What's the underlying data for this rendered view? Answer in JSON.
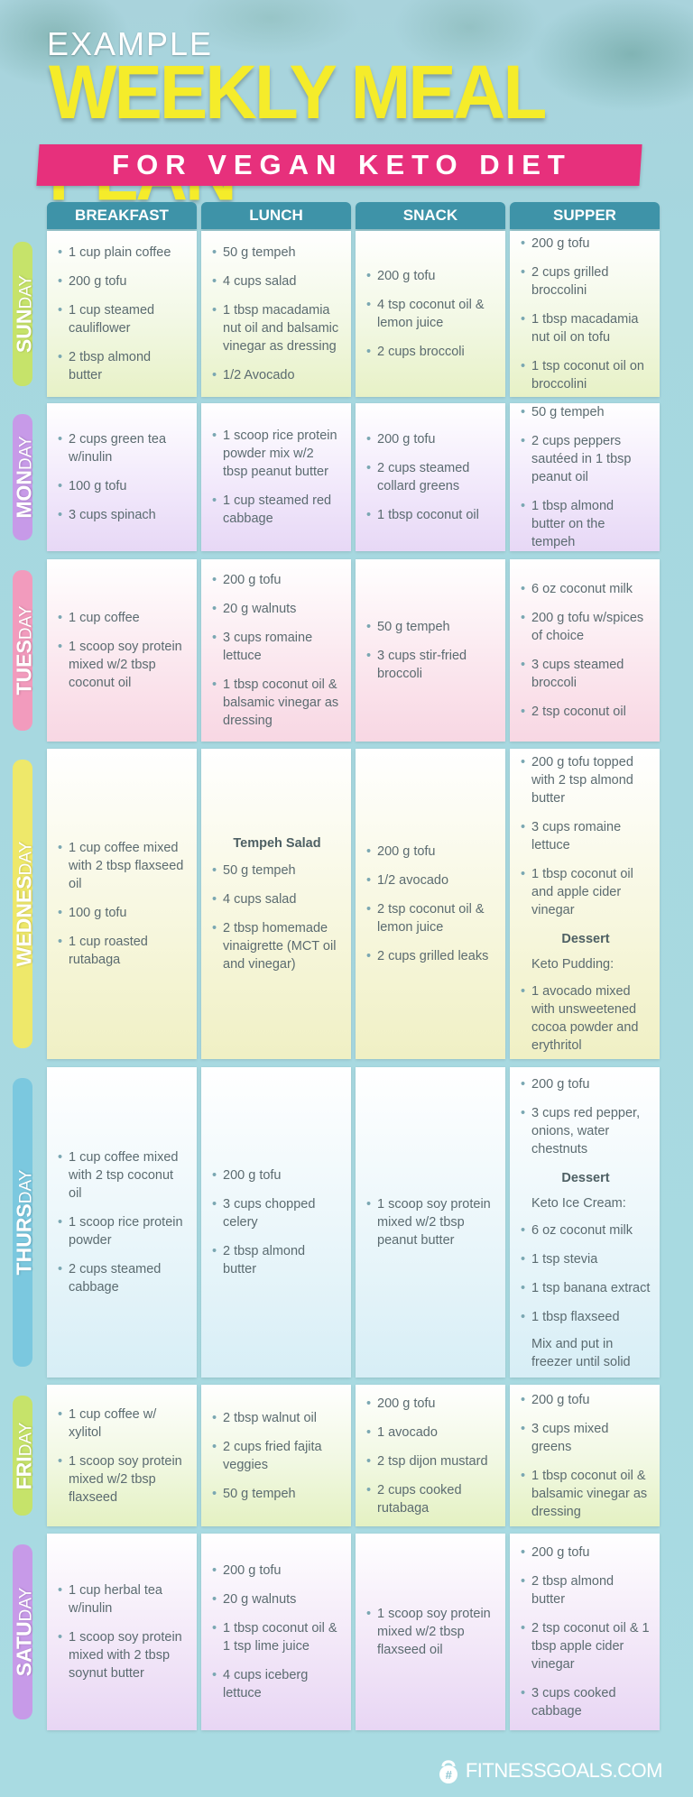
{
  "header": {
    "kicker": "EXAMPLE",
    "title": "WEEKLY MEAL PLAN",
    "subtitle": "FOR VEGAN KETO DIET"
  },
  "columns": [
    "BREAKFAST",
    "LUNCH",
    "SNACK",
    "SUPPER"
  ],
  "days": [
    {
      "label_bold": "SUN",
      "label_light": "DAY",
      "accent": "#c6e36a",
      "breakfast": [
        {
          "t": "1 cup plain coffee"
        },
        {
          "t": "200 g tofu"
        },
        {
          "t": "1 cup steamed cauliflower"
        },
        {
          "t": "2 tbsp almond butter"
        }
      ],
      "lunch": [
        {
          "t": "50 g tempeh"
        },
        {
          "t": "4 cups salad"
        },
        {
          "t": "1 tbsp macadamia nut oil and balsamic vinegar as dressing"
        },
        {
          "t": "1/2 Avocado"
        }
      ],
      "snack": [
        {
          "t": "200 g tofu"
        },
        {
          "t": "4 tsp coconut oil & lemon juice"
        },
        {
          "t": "2 cups broccoli"
        }
      ],
      "supper": [
        {
          "t": "200 g tofu"
        },
        {
          "t": "2 cups grilled broccolini"
        },
        {
          "t": "1 tbsp macadamia nut oil on tofu"
        },
        {
          "t": "1 tsp coconut oil on broccolini"
        }
      ]
    },
    {
      "label_bold": "MON",
      "label_light": "DAY",
      "accent": "#c79ae8",
      "breakfast": [
        {
          "t": "2 cups green tea w/inulin"
        },
        {
          "t": "100 g tofu"
        },
        {
          "t": "3 cups spinach"
        }
      ],
      "lunch": [
        {
          "t": "1 scoop rice protein powder mix w/2 tbsp peanut butter"
        },
        {
          "t": "1 cup steamed red cabbage"
        }
      ],
      "snack": [
        {
          "t": "200 g tofu"
        },
        {
          "t": "2 cups steamed collard greens"
        },
        {
          "t": "1 tbsp coconut oil"
        }
      ],
      "supper": [
        {
          "t": "50 g tempeh"
        },
        {
          "t": "2 cups peppers sautéed in 1 tbsp peanut oil"
        },
        {
          "t": "1 tbsp almond butter on the tempeh"
        }
      ]
    },
    {
      "label_bold": "TUES",
      "label_light": "DAY",
      "accent": "#f29bbd",
      "breakfast": [
        {
          "t": "1 cup coffee"
        },
        {
          "t": "1 scoop soy protein mixed w/2 tbsp coconut oil"
        }
      ],
      "lunch": [
        {
          "t": "200 g tofu"
        },
        {
          "t": "20 g walnuts"
        },
        {
          "t": "3 cups romaine lettuce"
        },
        {
          "t": "1 tbsp coconut oil & balsamic vinegar as dressing"
        }
      ],
      "snack": [
        {
          "t": "50 g tempeh"
        },
        {
          "t": "3 cups stir-fried broccoli"
        }
      ],
      "supper": [
        {
          "t": "6 oz coconut milk"
        },
        {
          "t": "200 g tofu w/spices of choice"
        },
        {
          "t": "3 cups steamed broccoli"
        },
        {
          "t": "2 tsp coconut oil"
        }
      ]
    },
    {
      "label_bold": "WEDNES",
      "label_light": "DAY",
      "accent": "#eee86a",
      "breakfast": [
        {
          "t": "1 cup coffee mixed with 2 tbsp flaxseed oil"
        },
        {
          "t": "100 g tofu"
        },
        {
          "t": "1 cup roasted rutabaga"
        }
      ],
      "lunch": [
        {
          "k": "heading",
          "t": "Tempeh Salad"
        },
        {
          "t": "50 g tempeh"
        },
        {
          "t": "4 cups salad"
        },
        {
          "t": " 2 tbsp homemade vinaigrette (MCT oil and vinegar)"
        }
      ],
      "snack": [
        {
          "t": "200 g tofu"
        },
        {
          "t": "1/2 avocado"
        },
        {
          "t": "2 tsp coconut oil & lemon juice"
        },
        {
          "t": "2 cups grilled leaks"
        }
      ],
      "supper": [
        {
          "t": "200 g tofu topped with 2 tsp almond butter"
        },
        {
          "t": "3 cups romaine lettuce"
        },
        {
          "t": "1 tbsp coconut oil and apple cider vinegar"
        },
        {
          "k": "heading",
          "t": "Dessert"
        },
        {
          "k": "plain",
          "t": "Keto Pudding:"
        },
        {
          "t": "1 avocado mixed with unsweetened cocoa powder and erythritol"
        }
      ]
    },
    {
      "label_bold": "THURS",
      "label_light": "DAY",
      "accent": "#7bc8df",
      "breakfast": [
        {
          "t": "1 cup coffee mixed with 2 tsp coconut oil"
        },
        {
          "t": "1 scoop rice protein powder"
        },
        {
          "t": "2 cups steamed cabbage"
        }
      ],
      "lunch": [
        {
          "t": "200 g tofu"
        },
        {
          "t": "3 cups chopped celery"
        },
        {
          "t": "2 tbsp almond butter"
        }
      ],
      "snack": [
        {
          "t": "1 scoop soy protein mixed w/2 tbsp peanut butter"
        }
      ],
      "supper": [
        {
          "t": "200 g tofu"
        },
        {
          "t": "3 cups red pepper, onions, water chestnuts"
        },
        {
          "k": "heading",
          "t": "Dessert"
        },
        {
          "k": "plain",
          "t": "Keto Ice Cream:"
        },
        {
          "t": "6 oz coconut milk"
        },
        {
          "t": "1 tsp stevia"
        },
        {
          "t": "1 tsp banana extract"
        },
        {
          "t": "1 tbsp flaxseed"
        },
        {
          "k": "plain",
          "t": "Mix and put in freezer until solid"
        }
      ]
    },
    {
      "label_bold": "FRI",
      "label_light": "DAY",
      "accent": "#c6e36a",
      "breakfast": [
        {
          "t": "1 cup coffee w/ xylitol"
        },
        {
          "t": "1 scoop soy protein mixed w/2 tbsp flaxseed"
        }
      ],
      "lunch": [
        {
          "t": "2 tbsp walnut oil"
        },
        {
          "t": "2 cups fried fajita veggies"
        },
        {
          "t": "50 g tempeh"
        }
      ],
      "snack": [
        {
          "t": "200 g tofu"
        },
        {
          "t": "1 avocado"
        },
        {
          "t": "2 tsp dijon mustard"
        },
        {
          "t": "2 cups cooked rutabaga"
        }
      ],
      "supper": [
        {
          "t": "200 g tofu"
        },
        {
          "t": "3 cups mixed greens"
        },
        {
          "t": "1 tbsp coconut oil & balsamic vinegar as dressing"
        }
      ]
    },
    {
      "label_bold": "SATU",
      "label_light": "DAY",
      "accent": "#c79ae8",
      "breakfast": [
        {
          "t": "1 cup herbal tea w/inulin"
        },
        {
          "t": "1 scoop soy protein mixed with 2 tbsp soynut butter"
        }
      ],
      "lunch": [
        {
          "t": "200 g tofu"
        },
        {
          "t": "20 g walnuts"
        },
        {
          "t": "1 tbsp coconut oil & 1 tsp lime juice"
        },
        {
          "t": "4 cups iceberg lettuce"
        }
      ],
      "snack": [
        {
          "t": "1 scoop soy protein mixed w/2 tbsp flaxseed oil"
        }
      ],
      "supper": [
        {
          "t": "200 g tofu"
        },
        {
          "t": "2 tbsp almond butter"
        },
        {
          "t": "2 tsp coconut oil & 1 tbsp apple cider vinegar"
        },
        {
          "t": "3 cups cooked cabbage"
        }
      ]
    }
  ],
  "footer": {
    "brand": "FITNESSGOALS.COM",
    "icon": "kettlebell-icon"
  }
}
